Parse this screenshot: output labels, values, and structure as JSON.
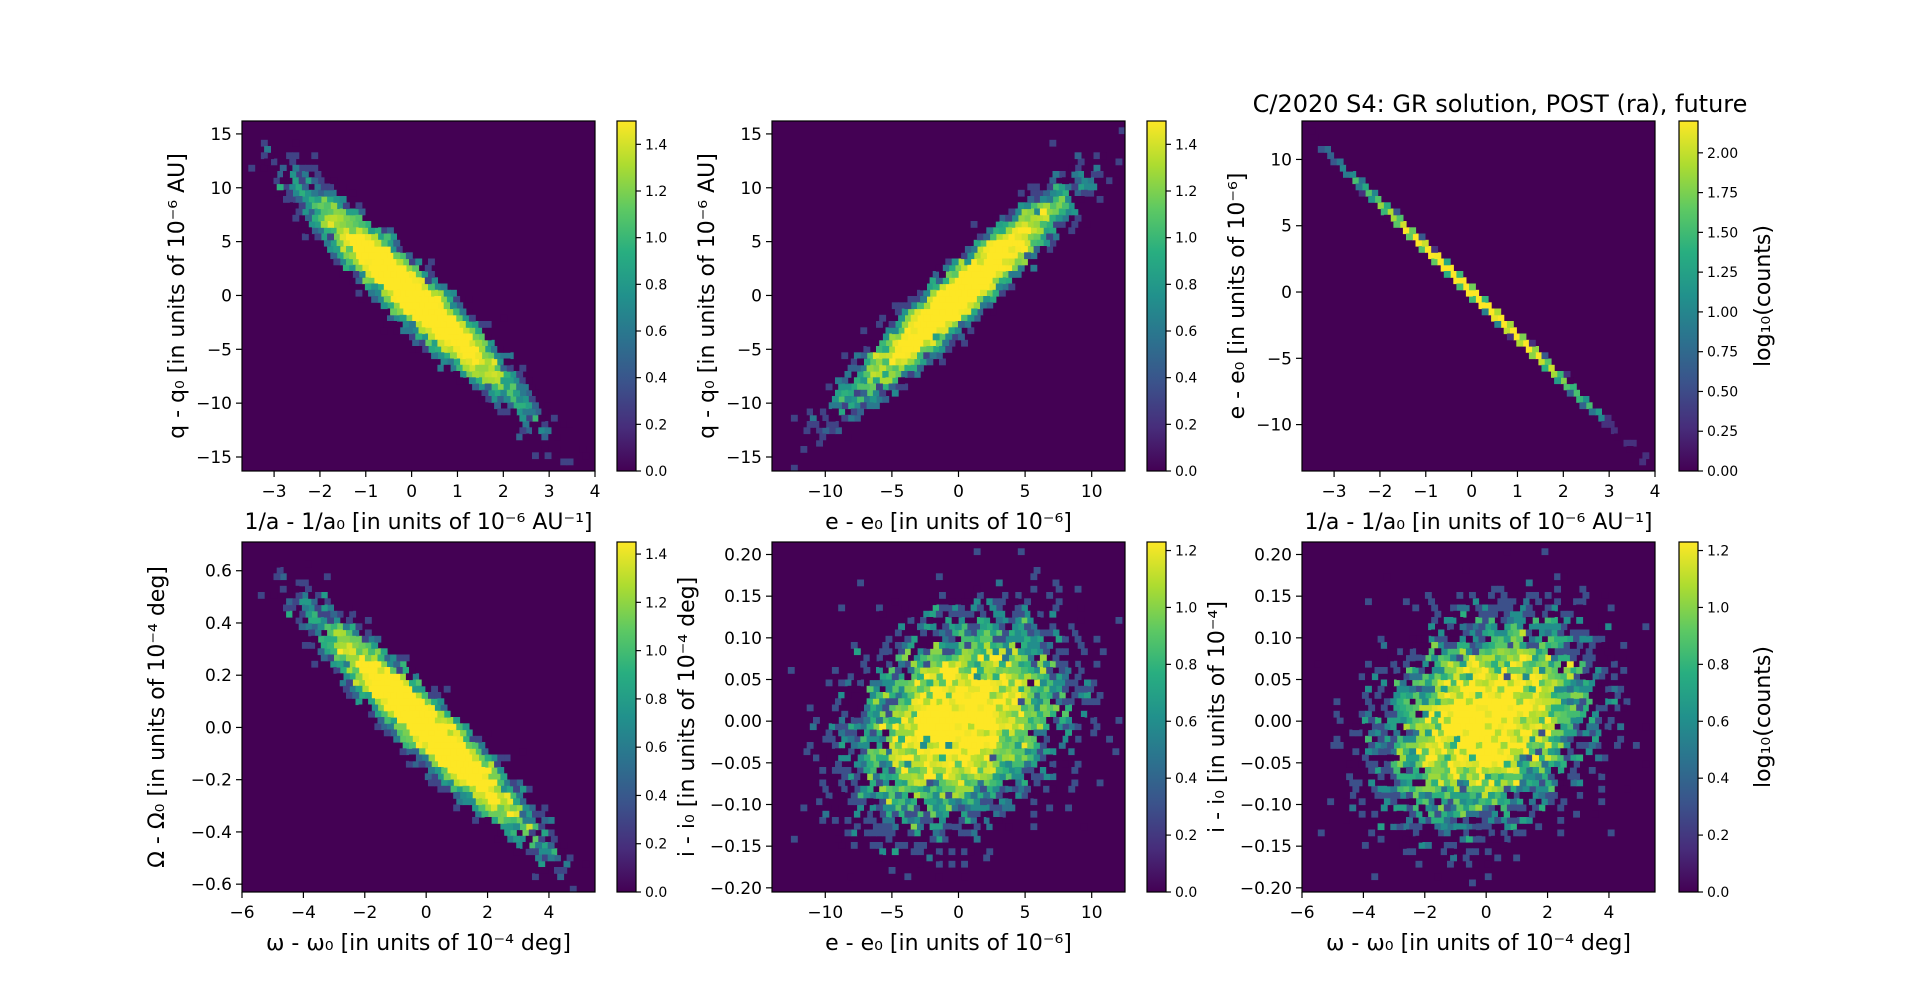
{
  "title": "C/2020 S4: GR solution, POST (ra), future",
  "colormap": [
    "#440154",
    "#472d7b",
    "#3b528b",
    "#2c728e",
    "#21918c",
    "#28ae80",
    "#5ec962",
    "#addc30",
    "#fde725"
  ],
  "chart_data": [
    {
      "type": "heatmap",
      "xlabel": "1/a - 1/a₀ [in units of 10⁻⁶ AU⁻¹]",
      "ylabel": "q - q₀ [in units of 10⁻⁶ AU]",
      "xlim": [
        -3.7,
        4.0
      ],
      "ylim": [
        -16.3,
        16.2
      ],
      "xticks": [
        -3,
        -2,
        -1,
        0,
        1,
        2,
        3,
        4
      ],
      "yticks": [
        -15,
        -10,
        -5,
        0,
        5,
        10,
        15
      ],
      "corr": -0.95,
      "sx": 1.05,
      "sy": 4.4,
      "colorbar": {
        "label": "",
        "max": 1.5,
        "ticks": [
          "0.0",
          "0.2",
          "0.4",
          "0.6",
          "0.8",
          "1.0",
          "1.2",
          "1.4"
        ],
        "tick_values": [
          0,
          0.2,
          0.4,
          0.6,
          0.8,
          1.0,
          1.2,
          1.4
        ]
      }
    },
    {
      "type": "heatmap",
      "xlabel": "e - e₀ [in units of 10⁻⁶]",
      "ylabel": "q - q₀ [in units of 10⁻⁶ AU]",
      "xlim": [
        -14,
        12.5
      ],
      "ylim": [
        -16.3,
        16.2
      ],
      "xticks": [
        -10,
        -5,
        0,
        5,
        10
      ],
      "yticks": [
        -15,
        -10,
        -5,
        0,
        5,
        10,
        15
      ],
      "corr": 0.95,
      "sx": 3.7,
      "sy": 4.4,
      "colorbar": {
        "label": "",
        "max": 1.5,
        "ticks": [
          "0.0",
          "0.2",
          "0.4",
          "0.6",
          "0.8",
          "1.0",
          "1.2",
          "1.4"
        ],
        "tick_values": [
          0,
          0.2,
          0.4,
          0.6,
          0.8,
          1.0,
          1.2,
          1.4
        ]
      }
    },
    {
      "type": "heatmap",
      "xlabel": "1/a - 1/a₀ [in units of 10⁻⁶ AU⁻¹]",
      "ylabel": "e - e₀ [in units of 10⁻⁶]",
      "xlim": [
        -3.7,
        4.0
      ],
      "ylim": [
        -13.5,
        12.9
      ],
      "xticks": [
        -3,
        -2,
        -1,
        0,
        1,
        2,
        3,
        4
      ],
      "yticks": [
        -10,
        -5,
        0,
        5,
        10
      ],
      "line": true,
      "slope": -3.35,
      "sx": 1.05,
      "colorbar": {
        "label": "log₁₀(counts)",
        "max": 2.2,
        "ticks": [
          "0.00",
          "0.25",
          "0.50",
          "0.75",
          "1.00",
          "1.25",
          "1.50",
          "1.75",
          "2.00"
        ],
        "tick_values": [
          0,
          0.25,
          0.5,
          0.75,
          1.0,
          1.25,
          1.5,
          1.75,
          2.0
        ]
      }
    },
    {
      "type": "heatmap",
      "xlabel": "ω - ω₀ [in units of 10⁻⁴ deg]",
      "ylabel": "Ω - Ω₀ [in units of 10⁻⁴ deg]",
      "xlim": [
        -6,
        5.5
      ],
      "ylim": [
        -0.63,
        0.71
      ],
      "xticks": [
        -6,
        -4,
        -2,
        0,
        2,
        4
      ],
      "yticks": [
        -0.6,
        -0.4,
        -0.2,
        0.0,
        0.2,
        0.4,
        0.6
      ],
      "yticklabels": [
        "−0.6",
        "−0.4",
        "−0.2",
        "0.0",
        "0.2",
        "0.4",
        "0.6"
      ],
      "corr": -0.95,
      "sx": 1.6,
      "sy": 0.19,
      "colorbar": {
        "label": "",
        "max": 1.45,
        "ticks": [
          "0.0",
          "0.2",
          "0.4",
          "0.6",
          "0.8",
          "1.0",
          "1.2",
          "1.4"
        ],
        "tick_values": [
          0,
          0.2,
          0.4,
          0.6,
          0.8,
          1.0,
          1.2,
          1.4
        ]
      }
    },
    {
      "type": "heatmap",
      "xlabel": "e - e₀ [in units of 10⁻⁶]",
      "ylabel": "i - i₀ [in units of 10⁻⁴ deg]",
      "xlim": [
        -14,
        12.5
      ],
      "ylim": [
        -0.205,
        0.215
      ],
      "xticks": [
        -10,
        -5,
        0,
        5,
        10
      ],
      "yticks": [
        -0.2,
        -0.15,
        -0.1,
        -0.05,
        0.0,
        0.05,
        0.1,
        0.15,
        0.2
      ],
      "yticklabels": [
        "−0.20",
        "−0.15",
        "−0.10",
        "−0.05",
        "0.00",
        "0.05",
        "0.10",
        "0.15",
        "0.20"
      ],
      "corr": 0.3,
      "sx": 3.7,
      "sy": 0.058,
      "colorbar": {
        "label": "",
        "max": 1.23,
        "ticks": [
          "0.0",
          "0.2",
          "0.4",
          "0.6",
          "0.8",
          "1.0",
          "1.2"
        ],
        "tick_values": [
          0,
          0.2,
          0.4,
          0.6,
          0.8,
          1.0,
          1.2
        ]
      }
    },
    {
      "type": "heatmap",
      "xlabel": "ω - ω₀ [in units of 10⁻⁴ deg]",
      "ylabel": "i - i₀ [in units of 10⁻⁴]",
      "xlim": [
        -6,
        5.5
      ],
      "ylim": [
        -0.205,
        0.215
      ],
      "xticks": [
        -6,
        -4,
        -2,
        0,
        2,
        4
      ],
      "yticks": [
        -0.2,
        -0.15,
        -0.1,
        -0.05,
        0.0,
        0.05,
        0.1,
        0.15,
        0.2
      ],
      "yticklabels": [
        "−0.20",
        "−0.15",
        "−0.10",
        "−0.05",
        "0.00",
        "0.05",
        "0.10",
        "0.15",
        "0.20"
      ],
      "corr": 0.25,
      "sx": 1.6,
      "sy": 0.058,
      "colorbar": {
        "label": "log₁₀(counts)",
        "max": 1.23,
        "ticks": [
          "0.0",
          "0.2",
          "0.4",
          "0.6",
          "0.8",
          "1.0",
          "1.2"
        ],
        "tick_values": [
          0,
          0.2,
          0.4,
          0.6,
          0.8,
          1.0,
          1.2
        ]
      }
    }
  ]
}
